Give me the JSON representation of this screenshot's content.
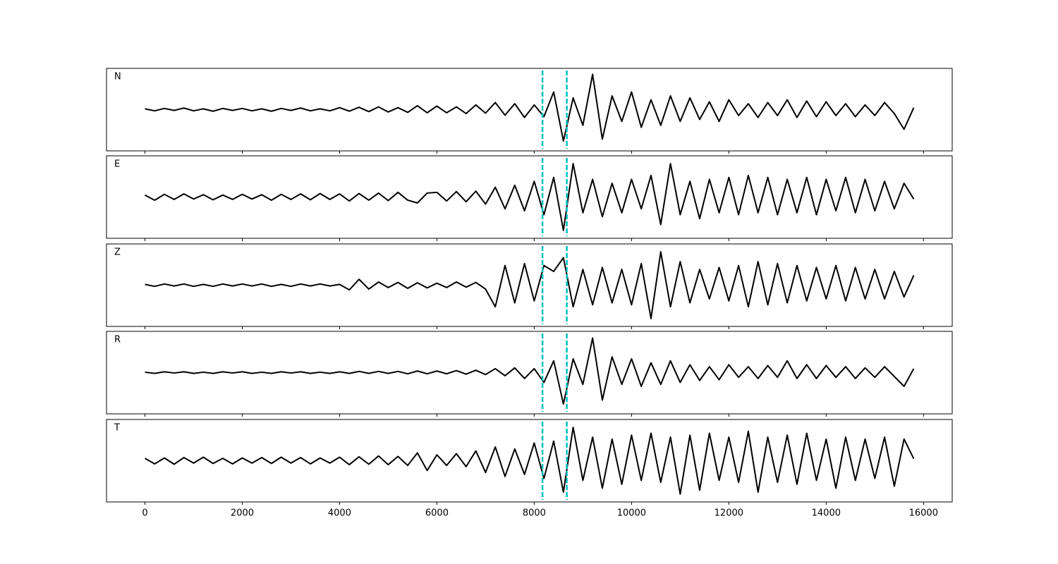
{
  "chart_data": {
    "type": "line",
    "x": [
      0,
      200,
      400,
      600,
      800,
      1000,
      1200,
      1400,
      1600,
      1800,
      2000,
      2200,
      2400,
      2600,
      2800,
      3000,
      3200,
      3400,
      3600,
      3800,
      4000,
      4200,
      4400,
      4600,
      4800,
      5000,
      5200,
      5400,
      5600,
      5800,
      6000,
      6200,
      6400,
      6600,
      6800,
      7000,
      7200,
      7400,
      7600,
      7800,
      8000,
      8200,
      8400,
      8600,
      8800,
      9000,
      9200,
      9400,
      9600,
      9800,
      10000,
      10200,
      10400,
      10600,
      10800,
      11000,
      11200,
      11400,
      11600,
      11800,
      12000,
      12200,
      12400,
      12600,
      12800,
      13000,
      13200,
      13400,
      13600,
      13800,
      14000,
      14200,
      14400,
      14600,
      14800,
      15000,
      15200,
      15400,
      15600,
      15800
    ],
    "series": [
      {
        "name": "N",
        "color": "#000000",
        "values": [
          0.02,
          -0.03,
          0.03,
          -0.02,
          0.04,
          -0.03,
          0.02,
          -0.04,
          0.03,
          -0.02,
          0.03,
          -0.03,
          0.02,
          -0.04,
          0.03,
          -0.02,
          0.04,
          -0.03,
          0.02,
          -0.03,
          0.05,
          -0.04,
          0.06,
          -0.05,
          0.07,
          -0.06,
          0.05,
          -0.07,
          0.1,
          -0.08,
          0.09,
          -0.08,
          0.07,
          -0.1,
          0.12,
          -0.09,
          0.18,
          -0.14,
          0.15,
          -0.2,
          0.12,
          -0.18,
          0.45,
          -0.8,
          0.3,
          -0.4,
          0.9,
          -0.75,
          0.35,
          -0.3,
          0.45,
          -0.45,
          0.25,
          -0.4,
          0.35,
          -0.3,
          0.3,
          -0.25,
          0.2,
          -0.3,
          0.25,
          -0.15,
          0.15,
          -0.2,
          0.18,
          -0.15,
          0.25,
          -0.2,
          0.22,
          -0.18,
          0.2,
          -0.15,
          0.15,
          -0.18,
          0.12,
          -0.15,
          0.18,
          -0.1,
          -0.5,
          0.05
        ]
      },
      {
        "name": "E",
        "color": "#000000",
        "values": [
          0.05,
          -0.08,
          0.07,
          -0.06,
          0.08,
          -0.05,
          0.06,
          -0.07,
          0.05,
          -0.06,
          0.07,
          -0.05,
          0.06,
          -0.08,
          0.07,
          -0.06,
          0.08,
          -0.07,
          0.09,
          -0.06,
          0.08,
          -0.1,
          0.09,
          -0.08,
          0.1,
          -0.09,
          0.12,
          -0.08,
          -0.15,
          0.1,
          0.12,
          -0.1,
          0.14,
          -0.12,
          0.15,
          -0.18,
          0.25,
          -0.3,
          0.3,
          -0.35,
          0.4,
          -0.45,
          0.5,
          -0.85,
          0.85,
          -0.4,
          0.45,
          -0.5,
          0.35,
          -0.4,
          0.45,
          -0.3,
          0.55,
          -0.7,
          0.85,
          -0.45,
          0.4,
          -0.55,
          0.45,
          -0.4,
          0.5,
          -0.45,
          0.55,
          -0.4,
          0.5,
          -0.45,
          0.45,
          -0.4,
          0.5,
          -0.45,
          0.45,
          -0.35,
          0.5,
          -0.4,
          0.45,
          -0.35,
          0.4,
          -0.3,
          0.35,
          -0.05
        ]
      },
      {
        "name": "Z",
        "color": "#000000",
        "values": [
          0.02,
          -0.03,
          0.03,
          -0.02,
          0.03,
          -0.03,
          0.02,
          -0.03,
          0.03,
          -0.02,
          0.03,
          -0.02,
          0.03,
          -0.03,
          0.02,
          -0.03,
          0.03,
          -0.02,
          0.03,
          -0.02,
          0.02,
          -0.12,
          0.15,
          -0.1,
          0.08,
          -0.06,
          0.07,
          -0.08,
          0.06,
          -0.07,
          0.05,
          -0.06,
          0.08,
          -0.05,
          0.07,
          -0.1,
          -0.55,
          0.5,
          -0.45,
          0.55,
          -0.4,
          0.5,
          0.35,
          0.7,
          -0.55,
          0.4,
          -0.5,
          0.45,
          -0.45,
          0.4,
          -0.5,
          0.55,
          -0.85,
          0.85,
          -0.55,
          0.6,
          -0.45,
          0.4,
          -0.35,
          0.45,
          -0.4,
          0.5,
          -0.55,
          0.6,
          -0.5,
          0.55,
          -0.45,
          0.5,
          -0.4,
          0.45,
          -0.35,
          0.5,
          -0.4,
          0.45,
          -0.35,
          0.4,
          -0.35,
          0.35,
          -0.3,
          0.25
        ]
      },
      {
        "name": "R",
        "color": "#000000",
        "values": [
          0.01,
          -0.02,
          0.02,
          -0.01,
          0.02,
          -0.02,
          0.01,
          -0.02,
          0.02,
          -0.01,
          0.02,
          -0.02,
          0.01,
          -0.02,
          0.02,
          -0.01,
          0.02,
          -0.02,
          0.01,
          -0.02,
          0.02,
          -0.02,
          0.03,
          -0.02,
          0.03,
          -0.02,
          0.03,
          -0.03,
          0.04,
          -0.03,
          0.04,
          -0.03,
          0.05,
          -0.04,
          0.06,
          -0.05,
          0.1,
          -0.08,
          0.12,
          -0.15,
          0.1,
          -0.25,
          0.3,
          -0.8,
          0.35,
          -0.3,
          0.88,
          -0.7,
          0.4,
          -0.3,
          0.35,
          -0.35,
          0.25,
          -0.3,
          0.3,
          -0.25,
          0.2,
          -0.2,
          0.15,
          -0.18,
          0.2,
          -0.12,
          0.15,
          -0.15,
          0.18,
          -0.12,
          0.3,
          -0.15,
          0.2,
          -0.15,
          0.18,
          -0.12,
          0.15,
          -0.15,
          0.12,
          -0.12,
          0.15,
          -0.1,
          -0.35,
          0.1
        ]
      },
      {
        "name": "T",
        "color": "#000000",
        "values": [
          0.06,
          -0.08,
          0.07,
          -0.09,
          0.08,
          -0.06,
          0.09,
          -0.07,
          0.06,
          -0.08,
          0.07,
          -0.06,
          0.08,
          -0.07,
          0.09,
          -0.06,
          0.08,
          -0.08,
          0.07,
          -0.06,
          0.09,
          -0.1,
          0.1,
          -0.09,
          0.12,
          -0.1,
          0.11,
          -0.12,
          0.2,
          -0.25,
          0.15,
          -0.12,
          0.18,
          -0.15,
          0.25,
          -0.3,
          0.35,
          -0.4,
          0.3,
          -0.35,
          0.45,
          -0.45,
          0.5,
          -0.8,
          0.85,
          -0.5,
          0.6,
          -0.7,
          0.55,
          -0.6,
          0.65,
          -0.5,
          0.7,
          -0.55,
          0.6,
          -0.85,
          0.65,
          -0.75,
          0.7,
          -0.5,
          0.6,
          -0.55,
          0.75,
          -0.8,
          0.6,
          -0.55,
          0.65,
          -0.6,
          0.7,
          -0.5,
          0.55,
          -0.7,
          0.6,
          -0.5,
          0.55,
          -0.45,
          0.6,
          -0.65,
          0.55,
          0.05
        ]
      }
    ],
    "vlines": [
      8170,
      8670
    ],
    "vline_color": "#00bfbf",
    "xlim": [
      -790,
      16590
    ],
    "xticks": [
      0,
      2000,
      4000,
      6000,
      8000,
      10000,
      12000,
      14000,
      16000
    ],
    "ylim": [
      -1.05,
      1.05
    ]
  }
}
